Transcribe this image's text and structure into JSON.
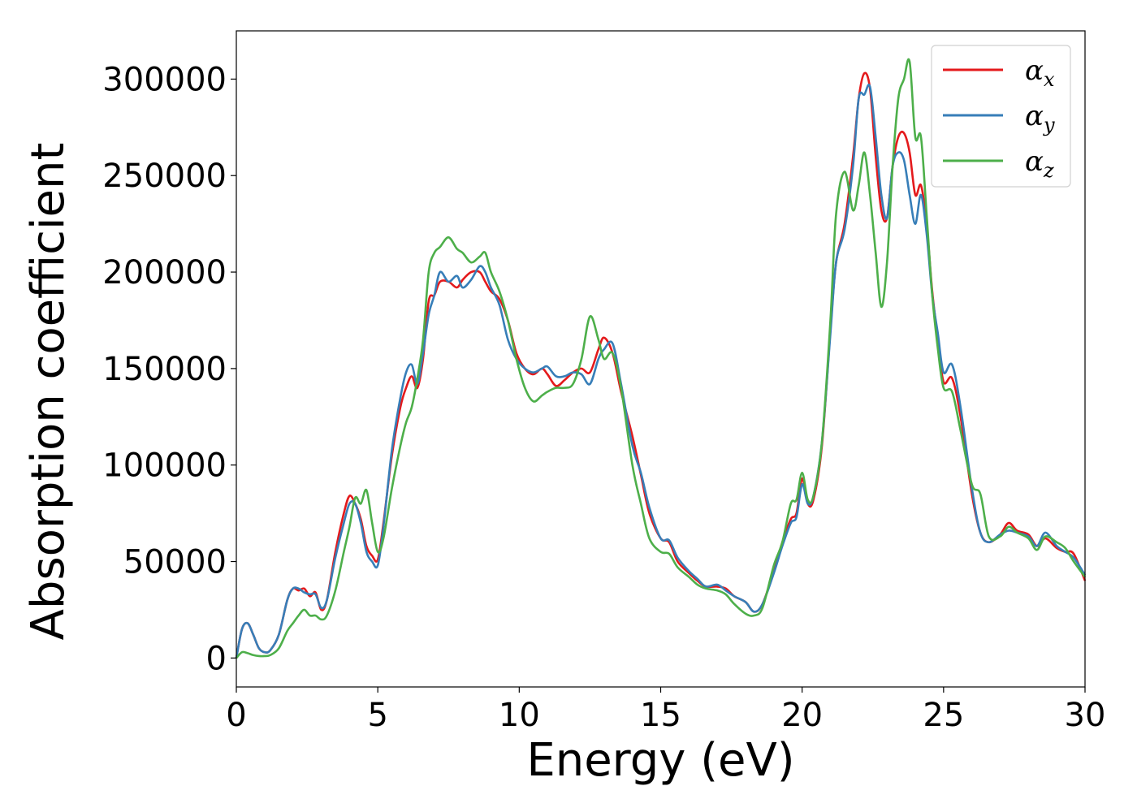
{
  "chart_data": {
    "type": "line",
    "title": "",
    "xlabel": "Energy (eV)",
    "ylabel": "Absorption coefficient",
    "xlim": [
      0,
      30
    ],
    "ylim": [
      -15000,
      325000
    ],
    "xticks": [
      0,
      5,
      10,
      15,
      20,
      25,
      30
    ],
    "yticks": [
      0,
      50000,
      100000,
      150000,
      200000,
      250000,
      300000
    ],
    "grid": false,
    "legend": {
      "position": "top-right",
      "entries": [
        {
          "symbol": "α",
          "sub": "x"
        },
        {
          "symbol": "α",
          "sub": "y"
        },
        {
          "symbol": "α",
          "sub": "z"
        }
      ]
    },
    "colors": [
      "#e41a1c",
      "#377eb8",
      "#4daf4a"
    ],
    "series": [
      {
        "x": [
          0,
          0.2,
          0.4,
          0.6,
          0.8,
          1.0,
          1.2,
          1.5,
          1.8,
          2.0,
          2.2,
          2.4,
          2.6,
          2.8,
          3.0,
          3.2,
          3.5,
          3.8,
          4.0,
          4.2,
          4.4,
          4.6,
          4.8,
          5.0,
          5.2,
          5.5,
          5.8,
          6.0,
          6.2,
          6.4,
          6.6,
          6.8,
          7.0,
          7.2,
          7.5,
          7.8,
          8.0,
          8.3,
          8.6,
          8.8,
          9.0,
          9.3,
          9.6,
          9.9,
          10.2,
          10.5,
          10.8,
          11.0,
          11.3,
          11.6,
          11.9,
          12.2,
          12.5,
          12.8,
          13.0,
          13.3,
          13.6,
          14.0,
          14.3,
          14.6,
          15.0,
          15.3,
          15.6,
          16.0,
          16.3,
          16.6,
          17.0,
          17.3,
          17.6,
          18.0,
          18.3,
          18.6,
          19.0,
          19.3,
          19.6,
          19.8,
          20.0,
          20.2,
          20.4,
          20.7,
          21.0,
          21.2,
          21.5,
          21.8,
          22.0,
          22.2,
          22.4,
          22.6,
          22.8,
          23.0,
          23.2,
          23.4,
          23.6,
          23.8,
          24.0,
          24.2,
          24.4,
          24.6,
          24.8,
          25.0,
          25.3,
          25.6,
          26.0,
          26.3,
          26.6,
          27.0,
          27.3,
          27.6,
          28.0,
          28.3,
          28.6,
          29.0,
          29.3,
          29.6,
          30.0
        ],
        "values": [
          0,
          15000,
          18000,
          12000,
          5000,
          3000,
          4000,
          12000,
          30000,
          36000,
          35000,
          36000,
          32000,
          34000,
          25000,
          30000,
          55000,
          75000,
          84000,
          80000,
          72000,
          58000,
          53000,
          51000,
          70000,
          105000,
          130000,
          140000,
          146000,
          140000,
          155000,
          185000,
          188000,
          195000,
          195000,
          192000,
          196000,
          200000,
          200000,
          195000,
          190000,
          186000,
          175000,
          158000,
          150000,
          147000,
          150000,
          147000,
          141000,
          144000,
          148000,
          150000,
          148000,
          160000,
          166000,
          158000,
          138000,
          115000,
          95000,
          75000,
          62000,
          60000,
          50000,
          44000,
          40000,
          37000,
          37000,
          36000,
          32000,
          29000,
          24000,
          28000,
          45000,
          60000,
          72000,
          75000,
          93000,
          80000,
          82000,
          110000,
          170000,
          205000,
          225000,
          260000,
          290000,
          303000,
          295000,
          260000,
          232000,
          228000,
          255000,
          270000,
          272000,
          262000,
          240000,
          245000,
          225000,
          190000,
          165000,
          143000,
          145000,
          125000,
          85000,
          65000,
          60000,
          64000,
          70000,
          66000,
          64000,
          58000,
          62000,
          57000,
          55000,
          54000,
          40000
        ]
      },
      {
        "x": [
          0,
          0.2,
          0.4,
          0.6,
          0.8,
          1.0,
          1.2,
          1.5,
          1.8,
          2.0,
          2.2,
          2.4,
          2.6,
          2.8,
          3.0,
          3.2,
          3.5,
          3.8,
          4.0,
          4.2,
          4.4,
          4.6,
          4.8,
          5.0,
          5.2,
          5.5,
          5.8,
          6.0,
          6.2,
          6.4,
          6.6,
          6.8,
          7.0,
          7.2,
          7.5,
          7.8,
          8.0,
          8.3,
          8.6,
          8.8,
          9.0,
          9.3,
          9.6,
          9.9,
          10.2,
          10.5,
          10.8,
          11.0,
          11.3,
          11.6,
          11.9,
          12.2,
          12.5,
          12.8,
          13.0,
          13.3,
          13.6,
          14.0,
          14.3,
          14.6,
          15.0,
          15.3,
          15.6,
          16.0,
          16.3,
          16.6,
          17.0,
          17.3,
          17.6,
          18.0,
          18.3,
          18.6,
          19.0,
          19.3,
          19.6,
          19.8,
          20.0,
          20.2,
          20.4,
          20.7,
          21.0,
          21.2,
          21.5,
          21.8,
          22.0,
          22.2,
          22.4,
          22.6,
          22.8,
          23.0,
          23.2,
          23.4,
          23.6,
          23.8,
          24.0,
          24.2,
          24.4,
          24.6,
          24.8,
          25.0,
          25.3,
          25.6,
          26.0,
          26.3,
          26.6,
          27.0,
          27.3,
          27.6,
          28.0,
          28.3,
          28.6,
          29.0,
          29.3,
          29.6,
          30.0
        ],
        "values": [
          0,
          15000,
          18000,
          12000,
          5000,
          3000,
          4000,
          12000,
          30000,
          36000,
          36000,
          34000,
          33000,
          33000,
          26000,
          30000,
          52000,
          70000,
          80000,
          80000,
          70000,
          55000,
          50000,
          48000,
          68000,
          108000,
          135000,
          148000,
          152000,
          142000,
          158000,
          178000,
          188000,
          200000,
          195000,
          198000,
          192000,
          196000,
          203000,
          200000,
          192000,
          183000,
          165000,
          155000,
          150000,
          148000,
          150000,
          151000,
          146000,
          146000,
          148000,
          147000,
          142000,
          155000,
          160000,
          163000,
          142000,
          110000,
          96000,
          78000,
          62000,
          61000,
          52000,
          45000,
          41000,
          37000,
          38000,
          35000,
          32000,
          29000,
          24000,
          28000,
          44000,
          58000,
          70000,
          73000,
          90000,
          80000,
          84000,
          112000,
          168000,
          205000,
          222000,
          255000,
          290000,
          292000,
          296000,
          270000,
          240000,
          228000,
          255000,
          262000,
          258000,
          240000,
          225000,
          240000,
          220000,
          188000,
          168000,
          148000,
          152000,
          130000,
          88000,
          65000,
          60000,
          64000,
          66000,
          65000,
          63000,
          58000,
          65000,
          58000,
          55000,
          52000,
          43000
        ]
      },
      {
        "x": [
          0,
          0.2,
          0.4,
          0.6,
          0.8,
          1.0,
          1.2,
          1.5,
          1.8,
          2.0,
          2.2,
          2.4,
          2.6,
          2.8,
          3.0,
          3.2,
          3.5,
          3.8,
          4.0,
          4.2,
          4.4,
          4.6,
          4.8,
          5.0,
          5.2,
          5.5,
          5.8,
          6.0,
          6.2,
          6.4,
          6.6,
          6.8,
          7.0,
          7.2,
          7.5,
          7.8,
          8.0,
          8.3,
          8.6,
          8.8,
          9.0,
          9.3,
          9.6,
          9.9,
          10.2,
          10.5,
          10.8,
          11.0,
          11.3,
          11.6,
          11.9,
          12.2,
          12.5,
          12.8,
          13.0,
          13.3,
          13.6,
          14.0,
          14.3,
          14.6,
          15.0,
          15.3,
          15.6,
          16.0,
          16.3,
          16.6,
          17.0,
          17.3,
          17.6,
          18.0,
          18.3,
          18.6,
          19.0,
          19.3,
          19.6,
          19.8,
          20.0,
          20.2,
          20.4,
          20.7,
          21.0,
          21.2,
          21.5,
          21.8,
          22.0,
          22.2,
          22.4,
          22.6,
          22.8,
          23.0,
          23.2,
          23.4,
          23.6,
          23.8,
          24.0,
          24.2,
          24.4,
          24.6,
          24.8,
          25.0,
          25.3,
          25.6,
          26.0,
          26.3,
          26.6,
          27.0,
          27.3,
          27.6,
          28.0,
          28.3,
          28.6,
          29.0,
          29.3,
          29.6,
          30.0
        ],
        "values": [
          0,
          3000,
          2500,
          1500,
          1000,
          1000,
          1500,
          5000,
          14000,
          18000,
          22000,
          25000,
          22000,
          22000,
          20000,
          22000,
          35000,
          55000,
          68000,
          83000,
          80000,
          87000,
          70000,
          55000,
          62000,
          88000,
          110000,
          122000,
          130000,
          145000,
          165000,
          200000,
          210000,
          213000,
          218000,
          212000,
          210000,
          205000,
          208000,
          210000,
          200000,
          190000,
          175000,
          155000,
          140000,
          133000,
          136000,
          138000,
          140000,
          140000,
          142000,
          155000,
          177000,
          165000,
          155000,
          158000,
          140000,
          100000,
          80000,
          62000,
          55000,
          54000,
          47000,
          42000,
          38000,
          36000,
          35000,
          33000,
          28000,
          23000,
          22000,
          26000,
          48000,
          60000,
          80000,
          82000,
          96000,
          82000,
          84000,
          112000,
          175000,
          230000,
          252000,
          232000,
          245000,
          262000,
          240000,
          210000,
          182000,
          205000,
          255000,
          290000,
          300000,
          309000,
          270000,
          270000,
          230000,
          188000,
          160000,
          140000,
          138000,
          118000,
          90000,
          85000,
          63000,
          63000,
          68000,
          65000,
          62000,
          56000,
          63000,
          60000,
          57000,
          50000,
          42000
        ]
      }
    ]
  }
}
